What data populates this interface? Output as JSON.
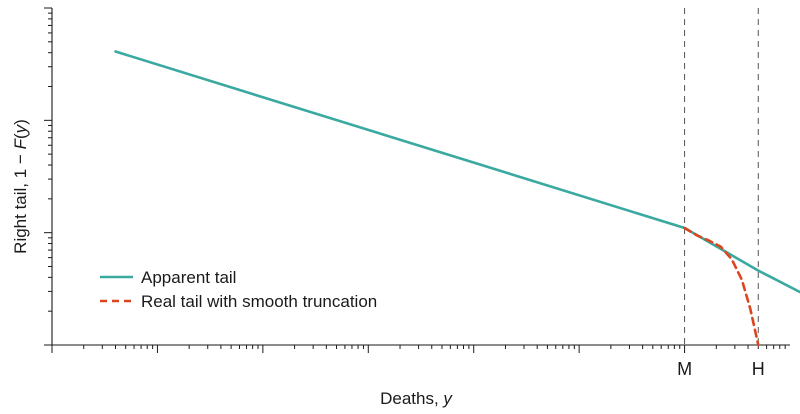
{
  "chart_data": {
    "type": "line",
    "x_scale": "log",
    "y_scale": "log",
    "xlabel_main": "Deaths, ",
    "xlabel_var": "y",
    "ylabel_main": "Right tail, 1 − ",
    "ylabel_func": "F",
    "ylabel_open": "(",
    "ylabel_var": "y",
    "ylabel_close": ")",
    "ylim": [
      0.001,
      1
    ],
    "xlim": [
      0.01,
      100000
    ],
    "x_tick_labels": [
      "M",
      "H"
    ],
    "vertical_markers": [
      {
        "label": "M",
        "x": 10000
      },
      {
        "label": "H",
        "x": 50000
      }
    ],
    "legend_position": "bottom-left",
    "series": [
      {
        "name": "Apparent tail",
        "color": "#3aa9a0",
        "style": "solid",
        "x": [
          0.04,
          10000,
          50000,
          150000
        ],
        "y": [
          0.41,
          0.011,
          0.0046,
          0.0027
        ]
      },
      {
        "name": "Real tail with smooth truncation",
        "color": "#d9461f",
        "style": "dashed",
        "x": [
          10000,
          13000,
          17000,
          22000,
          28000,
          35000,
          42000,
          50000
        ],
        "y": [
          0.011,
          0.0095,
          0.0085,
          0.0075,
          0.0058,
          0.0038,
          0.0021,
          0.001
        ]
      }
    ]
  }
}
